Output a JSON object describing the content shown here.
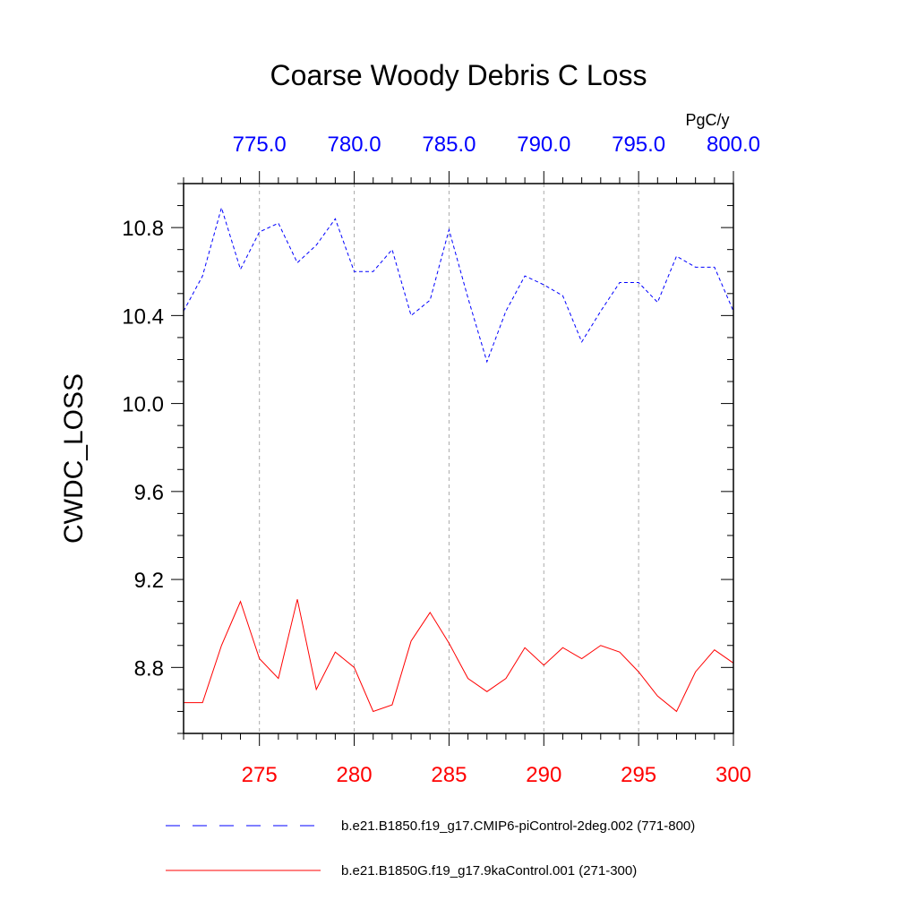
{
  "chart_data": {
    "type": "line",
    "title": "Coarse Woody Debris C Loss",
    "units_label": "PgC/y",
    "ylabel": "CWDC_LOSS",
    "ylim": [
      8.5,
      11.0
    ],
    "yticks": [
      8.8,
      9.2,
      9.6,
      10.0,
      10.4,
      10.8
    ],
    "ytick_labels": [
      "8.8",
      "9.2",
      "9.6",
      "10.0",
      "10.4",
      "10.8"
    ],
    "grid": "vertical dashed at major x ticks",
    "bottom_axis": {
      "range": [
        271,
        300
      ],
      "ticks": [
        275,
        280,
        285,
        290,
        295,
        300
      ],
      "tick_labels": [
        "275",
        "280",
        "285",
        "290",
        "295",
        "300"
      ],
      "color": "#ff0000"
    },
    "top_axis": {
      "range": [
        771,
        800
      ],
      "ticks": [
        775,
        780,
        785,
        790,
        795,
        800
      ],
      "tick_labels": [
        "775.0",
        "780.0",
        "785.0",
        "790.0",
        "795.0",
        "800.0"
      ],
      "color": "#0000ff"
    },
    "legend_placement": "bottom",
    "series": [
      {
        "name": "b.e21.B1850.f19_g17.CMIP6-piControl-2deg.002 (771-800)",
        "color": "#0000ff",
        "style": "dashed",
        "axis": "top",
        "x": [
          771,
          772,
          773,
          774,
          775,
          776,
          777,
          778,
          779,
          780,
          781,
          782,
          783,
          784,
          785,
          786,
          787,
          788,
          789,
          790,
          791,
          792,
          793,
          794,
          795,
          796,
          797,
          798,
          799,
          800
        ],
        "values": [
          10.42,
          10.58,
          10.89,
          10.61,
          10.78,
          10.82,
          10.64,
          10.72,
          10.84,
          10.6,
          10.6,
          10.7,
          10.4,
          10.47,
          10.79,
          10.48,
          10.19,
          10.42,
          10.58,
          10.54,
          10.49,
          10.28,
          10.42,
          10.55,
          10.55,
          10.46,
          10.67,
          10.62,
          10.62,
          10.42
        ]
      },
      {
        "name": "b.e21.B1850G.f19_g17.9kaControl.001 (271-300)",
        "color": "#ff0000",
        "style": "solid",
        "axis": "bottom",
        "x": [
          271,
          272,
          273,
          274,
          275,
          276,
          277,
          278,
          279,
          280,
          281,
          282,
          283,
          284,
          285,
          286,
          287,
          288,
          289,
          290,
          291,
          292,
          293,
          294,
          295,
          296,
          297,
          298,
          299,
          300
        ],
        "values": [
          8.64,
          8.64,
          8.9,
          9.1,
          8.84,
          8.75,
          9.11,
          8.7,
          8.87,
          8.8,
          8.6,
          8.63,
          8.92,
          9.05,
          8.91,
          8.75,
          8.69,
          8.75,
          8.89,
          8.81,
          8.89,
          8.84,
          8.9,
          8.87,
          8.78,
          8.67,
          8.6,
          8.78,
          8.88,
          8.82
        ]
      }
    ]
  }
}
